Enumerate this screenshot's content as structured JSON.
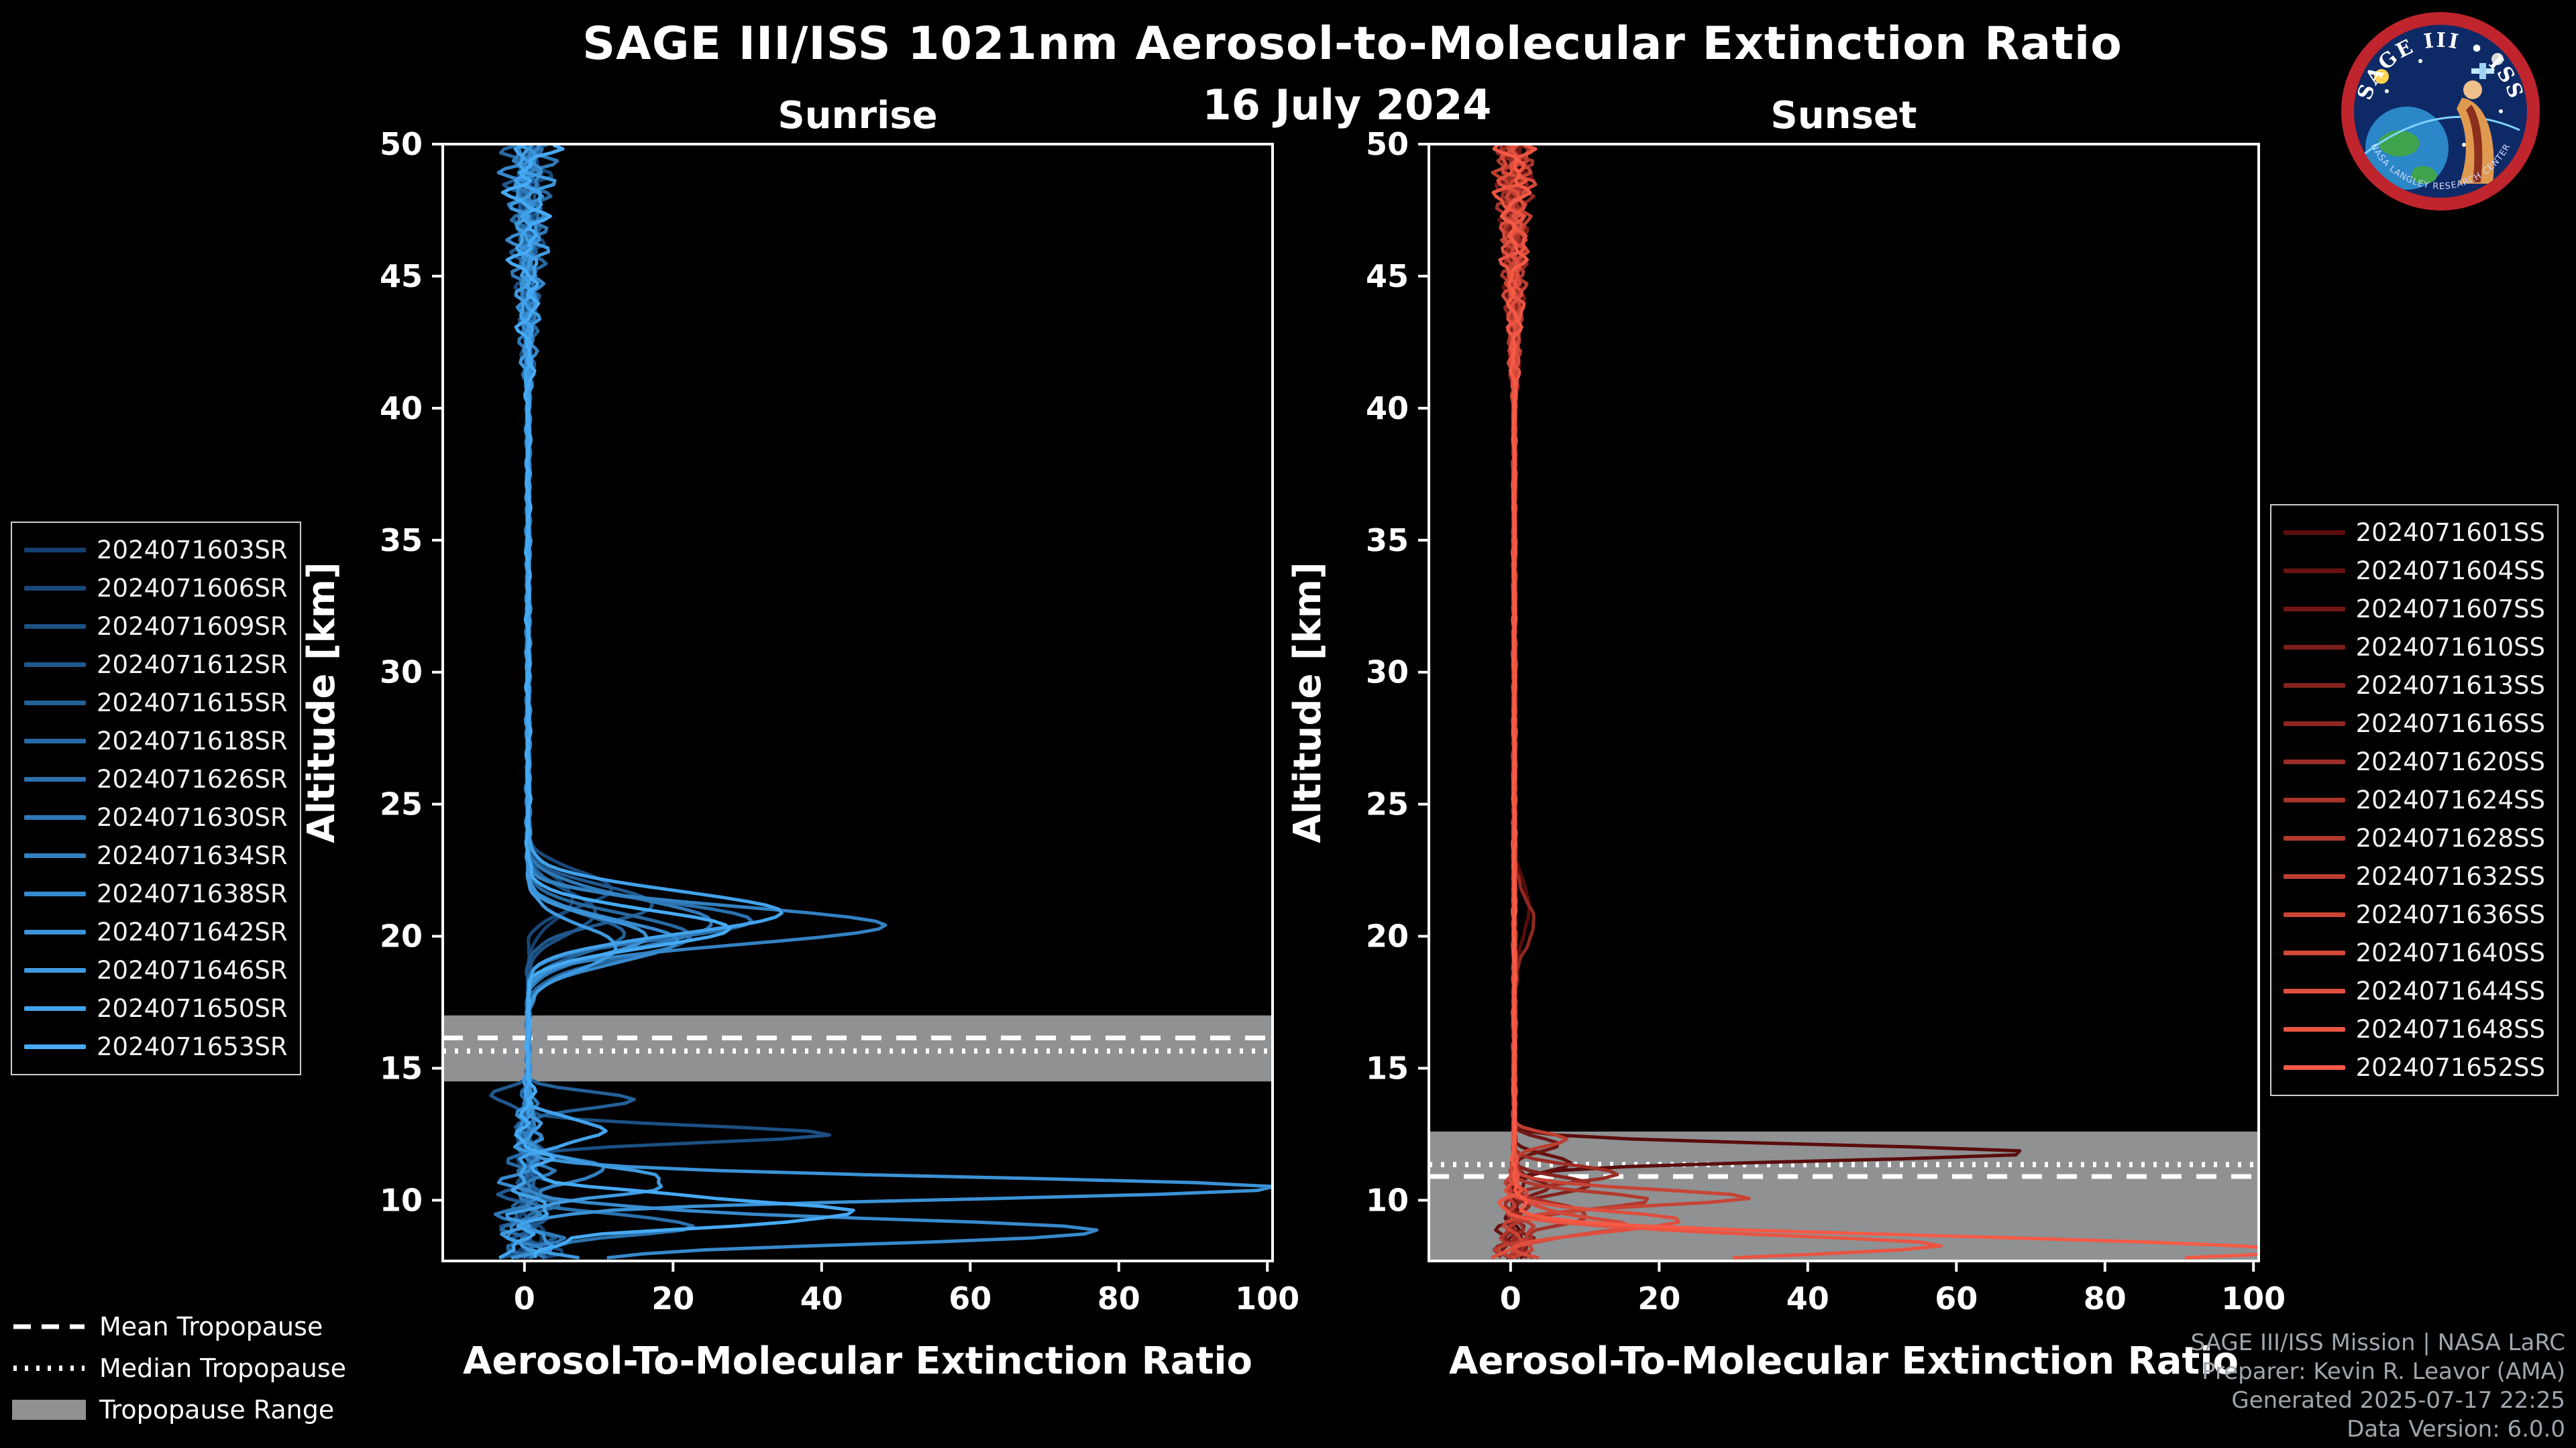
{
  "page": {
    "background": "#000000",
    "axis_color": "#ffffff"
  },
  "header": {
    "title": "SAGE III/ISS 1021nm Aerosol-to-Molecular Extinction Ratio",
    "date": "16 July 2024"
  },
  "logo": {
    "title": "SAGE III • ISS",
    "ring_text": "NASA LANGLEY RESEARCH CENTER"
  },
  "tropopause_legend": {
    "mean": "Mean Tropopause",
    "median": "Median Tropopause",
    "range": "Tropopause Range"
  },
  "footer": {
    "lines": [
      "SAGE III/ISS Mission | NASA LaRC",
      "Preparer: Kevin R. Leavor (AMA)",
      "Generated 2025-07-17 22:25",
      "Data Version: 6.0.0"
    ]
  },
  "chart_data": [
    {
      "type": "line",
      "panel": "sunrise",
      "title": "Sunrise",
      "xlabel": "Aerosol-To-Molecular Extinction Ratio",
      "ylabel": "Altitude [km]",
      "xlim": [
        -11,
        100.7
      ],
      "ylim": [
        7.7,
        50
      ],
      "x_ticks": [
        0,
        20,
        40,
        60,
        80,
        100
      ],
      "y_ticks": [
        10,
        15,
        20,
        25,
        30,
        35,
        40,
        45,
        50
      ],
      "grid": false,
      "legend_side": "left",
      "baseline": 0.5,
      "feature_format": "[altitude_km, peak_extinction_ratio, sigma_km]",
      "tropopause": {
        "mean_km": 16.15,
        "median_km": 15.65,
        "range_km": [
          14.5,
          17.0
        ],
        "range_fill": "#8f9193"
      },
      "noise_envelope": {
        "base": 0.3,
        "upper_start": 40,
        "upper_rate": 0.35,
        "lower_start": 14.8,
        "lower_rate": 0.8
      },
      "series": [
        {
          "label": "2024071603SR",
          "color": "#14406e",
          "features": [
            [
              21.4,
              6,
              0.8
            ]
          ]
        },
        {
          "label": "2024071606SR",
          "color": "#184878",
          "features": [
            [
              21.8,
              11,
              0.7
            ]
          ]
        },
        {
          "label": "2024071609SR",
          "color": "#1c5083",
          "features": [
            [
              20.9,
              9,
              0.8
            ],
            [
              12.5,
              40,
              0.3
            ]
          ]
        },
        {
          "label": "2024071612SR",
          "color": "#20588d",
          "features": [
            [
              21.2,
              17,
              0.7
            ],
            [
              14.0,
              -5,
              0.3
            ]
          ]
        },
        {
          "label": "2024071615SR",
          "color": "#236198",
          "features": [
            [
              20.1,
              13,
              0.7
            ],
            [
              13.8,
              14,
              0.3
            ]
          ]
        },
        {
          "label": "2024071618SR",
          "color": "#2769a2",
          "features": [
            [
              20.0,
              22,
              0.8
            ]
          ]
        },
        {
          "label": "2024071626SR",
          "color": "#2b71ac",
          "features": [
            [
              20.6,
              30,
              0.7
            ],
            [
              9.0,
              20,
              0.4
            ]
          ]
        },
        {
          "label": "2024071630SR",
          "color": "#2f79b7",
          "features": [
            [
              20.5,
              25,
              0.9
            ]
          ]
        },
        {
          "label": "2024071634SR",
          "color": "#3381c1",
          "features": [
            [
              20.4,
              48,
              0.7
            ],
            [
              11.2,
              12,
              0.35
            ]
          ]
        },
        {
          "label": "2024071638SR",
          "color": "#3789cc",
          "features": [
            [
              19.8,
              20,
              0.8
            ],
            [
              8.8,
              75,
              0.5
            ]
          ]
        },
        {
          "label": "2024071642SR",
          "color": "#3b92d6",
          "features": [
            [
              20.0,
              16,
              0.7
            ],
            [
              10.45,
              102,
              0.4
            ]
          ]
        },
        {
          "label": "2024071646SR",
          "color": "#3f9ae0",
          "features": [
            [
              19.6,
              12,
              0.8
            ],
            [
              10.8,
              18,
              0.5
            ]
          ]
        },
        {
          "label": "2024071650SR",
          "color": "#42a2eb",
          "features": [
            [
              20.9,
              34,
              0.8
            ],
            [
              12.7,
              10,
              0.4
            ]
          ]
        },
        {
          "label": "2024071653SR",
          "color": "#46aaf5",
          "features": [
            [
              20.3,
              27,
              0.7
            ],
            [
              9.6,
              45,
              0.5
            ]
          ]
        }
      ]
    },
    {
      "type": "line",
      "panel": "sunset",
      "title": "Sunset",
      "xlabel": "Aerosol-To-Molecular Extinction Ratio",
      "ylabel": "Altitude [km]",
      "xlim": [
        -11,
        100.7
      ],
      "ylim": [
        7.7,
        50
      ],
      "x_ticks": [
        0,
        20,
        40,
        60,
        80,
        100
      ],
      "y_ticks": [
        10,
        15,
        20,
        25,
        30,
        35,
        40,
        45,
        50
      ],
      "grid": false,
      "legend_side": "right",
      "baseline": 0.5,
      "feature_format": "[altitude_km, peak_extinction_ratio, sigma_km]",
      "tropopause": {
        "mean_km": 10.9,
        "median_km": 11.35,
        "range_km": [
          7.7,
          12.6
        ],
        "range_fill": "#8f9193"
      },
      "noise_envelope": {
        "base": 0.25,
        "upper_start": 40,
        "upper_rate": 0.3,
        "lower_start": 11.8,
        "lower_rate": 0.9
      },
      "series": [
        {
          "label": "2024071601SS",
          "color": "#5a0c0c",
          "features": [
            [
              11.8,
              70,
              0.3
            ],
            [
              21.0,
              2,
              1.0
            ]
          ]
        },
        {
          "label": "2024071604SS",
          "color": "#651210",
          "features": [
            [
              11.4,
              8,
              0.3
            ]
          ]
        },
        {
          "label": "2024071607SS",
          "color": "#701714",
          "features": [
            [
              12.1,
              6,
              0.25
            ]
          ]
        },
        {
          "label": "2024071610SS",
          "color": "#7b1d18",
          "features": [
            [
              10.4,
              5,
              0.3
            ]
          ]
        },
        {
          "label": "2024071613SS",
          "color": "#86221d",
          "features": [
            [
              10.6,
              10,
              0.3
            ]
          ]
        },
        {
          "label": "2024071616SS",
          "color": "#912821",
          "features": [
            [
              20.5,
              2.5,
              1.0
            ]
          ]
        },
        {
          "label": "2024071620SS",
          "color": "#9c2d25",
          "features": [
            [
              11.0,
              14,
              0.3
            ]
          ]
        },
        {
          "label": "2024071624SS",
          "color": "#a73329",
          "features": [
            [
              9.4,
              12,
              0.35
            ]
          ]
        },
        {
          "label": "2024071628SS",
          "color": "#b2392d",
          "features": [
            [
              10.0,
              18,
              0.3
            ]
          ]
        },
        {
          "label": "2024071632SS",
          "color": "#bd3e31",
          "features": [
            [
              12.3,
              7,
              0.25
            ]
          ]
        },
        {
          "label": "2024071636SS",
          "color": "#c84435",
          "features": [
            [
              10.1,
              32,
              0.3
            ]
          ]
        },
        {
          "label": "2024071640SS",
          "color": "#d44939",
          "features": [
            [
              9.0,
              15,
              0.4
            ]
          ]
        },
        {
          "label": "2024071644SS",
          "color": "#df4f3e",
          "features": [
            [
              9.2,
              22,
              0.35
            ]
          ]
        },
        {
          "label": "2024071648SS",
          "color": "#ea5442",
          "features": [
            [
              8.3,
              55,
              0.4
            ]
          ]
        },
        {
          "label": "2024071652SS",
          "color": "#f55a46",
          "features": [
            [
              8.1,
              105,
              0.5
            ]
          ]
        }
      ]
    }
  ]
}
